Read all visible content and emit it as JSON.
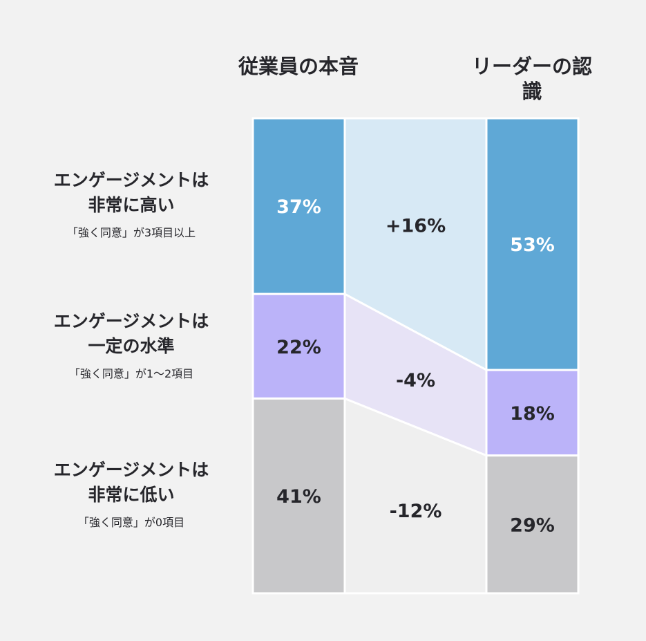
{
  "chart_data": {
    "type": "bar",
    "subtype": "stacked-100-comparison",
    "columns": [
      "従業員の本音",
      "リーダーの認識"
    ],
    "categories": [
      {
        "title": [
          "エンゲージメントは",
          "非常に高い"
        ],
        "subtitle": "「強く同意」が3項目以上"
      },
      {
        "title": [
          "エンゲージメントは",
          "一定の水準"
        ],
        "subtitle": "「強く同意」が1〜2項目"
      },
      {
        "title": [
          "エンゲージメントは",
          "非常に低い"
        ],
        "subtitle": "「強く同意」が0項目"
      }
    ],
    "series": [
      {
        "column": "従業員の本音",
        "values": [
          37,
          22,
          41
        ],
        "labels": [
          "37%",
          "22%",
          "41%"
        ]
      },
      {
        "column": "リーダーの認識",
        "values": [
          53,
          18,
          29
        ],
        "labels": [
          "53%",
          "18%",
          "29%"
        ]
      }
    ],
    "differences": [
      "+16%",
      "-4%",
      "-12%"
    ],
    "colors": {
      "bars": [
        "#5fa8d6",
        "#bbb3f9",
        "#c8c8ca"
      ],
      "bands": [
        "#d7e9f5",
        "#e7e3f6",
        "#efefef"
      ],
      "label_light": "#ffffff",
      "label_dark": "#26262b",
      "background": "#f2f2f2"
    }
  }
}
